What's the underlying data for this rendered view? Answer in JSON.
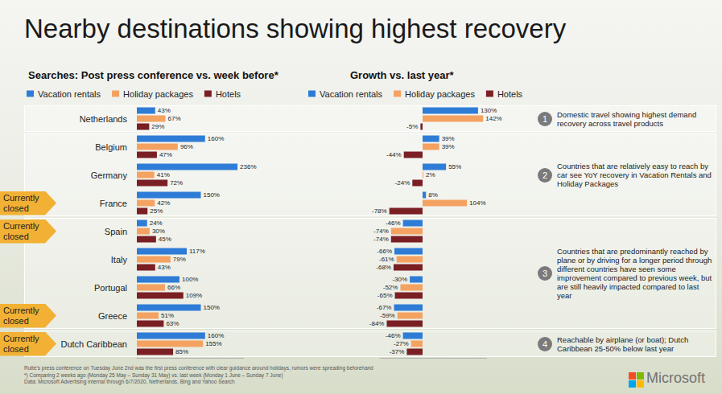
{
  "title": "Nearby destinations showing highest recovery",
  "chart_data": [
    {
      "type": "bar",
      "title": "Searches: Post press conference vs. week before*",
      "orientation": "horizontal",
      "categories": [
        "Netherlands",
        "Belgium",
        "Germany",
        "France",
        "Spain",
        "Italy",
        "Portugal",
        "Greece",
        "Dutch Caribbean"
      ],
      "series": [
        {
          "name": "Vacation rentals",
          "color": "#2e7cd6",
          "values": [
            43,
            160,
            236,
            150,
            24,
            117,
            100,
            150,
            160
          ],
          "value_labels": [
            "43%",
            "160%",
            "236%",
            "150%",
            "24%",
            "117%",
            "100%",
            "150%",
            "160%"
          ]
        },
        {
          "name": "Holiday packages",
          "color": "#f4a261",
          "values": [
            67,
            96,
            41,
            42,
            30,
            79,
            66,
            51,
            155
          ],
          "value_labels": [
            "67%",
            "96%",
            "41%",
            "42%",
            "30%",
            "79%",
            "66%",
            "51%",
            "155%"
          ]
        },
        {
          "name": "Hotels",
          "color": "#7a1f24",
          "values": [
            29,
            47,
            72,
            25,
            45,
            43,
            109,
            63,
            85
          ],
          "value_labels": [
            "29%",
            "47%",
            "72%",
            "25%",
            "45%",
            "43%",
            "109%",
            "63%",
            "85%"
          ]
        }
      ],
      "xlim": [
        0,
        250
      ],
      "data_labels": true,
      "tick_labels": "y",
      "grid": false,
      "legend": "top"
    },
    {
      "type": "bar",
      "title": "Growth vs. last year*",
      "orientation": "horizontal",
      "categories": [
        "Netherlands",
        "Belgium",
        "Germany",
        "France",
        "Spain",
        "Italy",
        "Portugal",
        "Greece",
        "Dutch Caribbean"
      ],
      "series": [
        {
          "name": "Vacation rentals",
          "color": "#2e7cd6",
          "values": [
            130,
            39,
            55,
            8,
            -46,
            -66,
            -30,
            -67,
            -46
          ],
          "value_labels": [
            "130%",
            "39%",
            "55%",
            "8%",
            "-46%",
            "-66%",
            "-30%",
            "-67%",
            "-46%"
          ]
        },
        {
          "name": "Holiday packages",
          "color": "#f4a261",
          "values": [
            142,
            39,
            2,
            104,
            -74,
            -61,
            -52,
            -59,
            -27
          ],
          "value_labels": [
            "142%",
            "39%",
            "2%",
            "104%",
            "-74%",
            "-61%",
            "-52%",
            "-59%",
            "-27%"
          ]
        },
        {
          "name": "Hotels",
          "color": "#7a1f24",
          "values": [
            -5,
            -44,
            -24,
            -78,
            -74,
            -68,
            -65,
            -84,
            -37
          ],
          "value_labels": [
            "-5%",
            "-44%",
            "-24%",
            "-78%",
            "-74%",
            "-68%",
            "-65%",
            "-84%",
            "-37%"
          ]
        }
      ],
      "xlim": [
        -100,
        150
      ],
      "data_labels": true,
      "tick_labels": false,
      "grid": false,
      "legend": "top"
    }
  ],
  "groups": [
    {
      "number": 1,
      "categories": [
        "Netherlands"
      ],
      "note": "Domestic travel showing highest demand recovery across travel products"
    },
    {
      "number": 2,
      "categories": [
        "Belgium",
        "Germany",
        "France"
      ],
      "note": "Countries that are relatively easy to reach by car see YoY recovery in Vacation Rentals and Holiday Packages"
    },
    {
      "number": 3,
      "categories": [
        "Spain",
        "Italy",
        "Portugal",
        "Greece"
      ],
      "note": "Countries that are predominantly reached by plane or by driving for a longer period through different countries have seen some improvement compared to previous week, but are still heavily impacted compared to last year"
    },
    {
      "number": 4,
      "categories": [
        "Dutch Caribbean"
      ],
      "note": "Reachable by airplane (or boat); Dutch Caribbean 25-50% below last year"
    }
  ],
  "closed": {
    "label": "Currently closed",
    "categories": [
      "France",
      "Spain",
      "Greece",
      "Dutch Caribbean"
    ]
  },
  "footnotes": [
    "Rutte's press conference on Tuesday June 2nd was the first press conference with clear guidance around holidays, rumors were spreading beforehand",
    "*) Comparing 2 weeks ago (Monday 25 May – Sunday 31 May) vs. last week (Monday 1 June – Sunday 7 June)",
    "Data: Microsoft Advertising internal through 6/7/2020, Netherlands, Bing and Yahoo Search"
  ],
  "logo": "Microsoft"
}
